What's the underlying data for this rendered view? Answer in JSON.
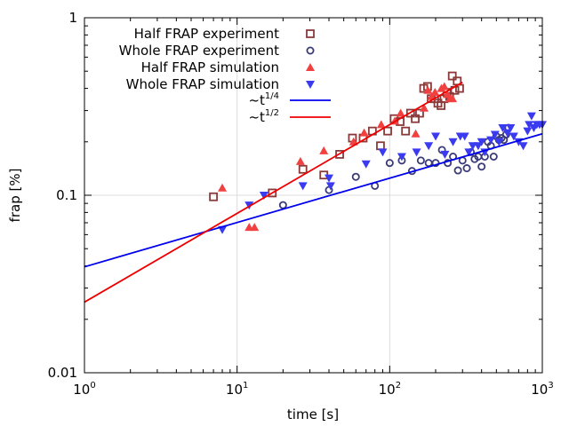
{
  "chart_data": {
    "type": "scatter",
    "xlabel": "time [s]",
    "ylabel": "frap [%]",
    "xscale": "log",
    "yscale": "log",
    "xlim": [
      1,
      1000
    ],
    "ylim": [
      0.01,
      1
    ],
    "grid": "major",
    "legend_position": "top-left",
    "x_ticks": [
      {
        "value": 1,
        "base": "10",
        "exp": "0"
      },
      {
        "value": 10,
        "base": "10",
        "exp": "1"
      },
      {
        "value": 100,
        "base": "10",
        "exp": "2"
      },
      {
        "value": 1000,
        "base": "10",
        "exp": "3"
      }
    ],
    "y_ticks": [
      {
        "value": 0.01,
        "label": "0.01"
      },
      {
        "value": 0.1,
        "label": "0.1"
      },
      {
        "value": 1,
        "label": "1"
      }
    ],
    "series": [
      {
        "name": "Half FRAP experiment",
        "marker": "square-open",
        "color": "#8b3a3a",
        "points": [
          [
            7,
            0.098
          ],
          [
            17,
            0.103
          ],
          [
            27,
            0.14
          ],
          [
            37,
            0.13
          ],
          [
            47,
            0.17
          ],
          [
            57,
            0.21
          ],
          [
            67,
            0.21
          ],
          [
            77,
            0.23
          ],
          [
            87,
            0.19
          ],
          [
            97,
            0.23
          ],
          [
            107,
            0.27
          ],
          [
            117,
            0.26
          ],
          [
            127,
            0.23
          ],
          [
            137,
            0.29
          ],
          [
            147,
            0.27
          ],
          [
            157,
            0.29
          ],
          [
            167,
            0.4
          ],
          [
            177,
            0.41
          ],
          [
            187,
            0.35
          ],
          [
            197,
            0.35
          ],
          [
            207,
            0.33
          ],
          [
            217,
            0.32
          ],
          [
            227,
            0.35
          ],
          [
            237,
            0.38
          ],
          [
            247,
            0.36
          ],
          [
            257,
            0.47
          ],
          [
            267,
            0.39
          ],
          [
            277,
            0.44
          ],
          [
            287,
            0.4
          ]
        ]
      },
      {
        "name": "Whole FRAP experiment",
        "marker": "circle-open",
        "color": "#3b3b7a",
        "points": [
          [
            20,
            0.088
          ],
          [
            40,
            0.107
          ],
          [
            60,
            0.127
          ],
          [
            80,
            0.113
          ],
          [
            100,
            0.152
          ],
          [
            120,
            0.157
          ],
          [
            140,
            0.137
          ],
          [
            160,
            0.157
          ],
          [
            180,
            0.152
          ],
          [
            200,
            0.152
          ],
          [
            220,
            0.18
          ],
          [
            240,
            0.152
          ],
          [
            260,
            0.165
          ],
          [
            280,
            0.138
          ],
          [
            300,
            0.157
          ],
          [
            320,
            0.142
          ],
          [
            340,
            0.175
          ],
          [
            360,
            0.16
          ],
          [
            380,
            0.165
          ],
          [
            400,
            0.145
          ],
          [
            420,
            0.165
          ],
          [
            440,
            0.2
          ],
          [
            460,
            0.19
          ],
          [
            480,
            0.165
          ],
          [
            500,
            0.215
          ],
          [
            520,
            0.205
          ],
          [
            540,
            0.21
          ],
          [
            560,
            0.205
          ],
          [
            580,
            0.22
          ],
          [
            600,
            0.24
          ]
        ]
      },
      {
        "name": "Half FRAP simulation",
        "marker": "triangle-up",
        "color": "#f04040",
        "points": [
          [
            8,
            0.11
          ],
          [
            12,
            0.066
          ],
          [
            13,
            0.066
          ],
          [
            26,
            0.155
          ],
          [
            37,
            0.178
          ],
          [
            58,
            0.2
          ],
          [
            68,
            0.225
          ],
          [
            88,
            0.25
          ],
          [
            108,
            0.262
          ],
          [
            118,
            0.29
          ],
          [
            148,
            0.222
          ],
          [
            168,
            0.31
          ],
          [
            178,
            0.39
          ],
          [
            188,
            0.36
          ],
          [
            198,
            0.38
          ],
          [
            218,
            0.4
          ],
          [
            228,
            0.41
          ],
          [
            238,
            0.37
          ],
          [
            248,
            0.35
          ],
          [
            258,
            0.35
          ]
        ]
      },
      {
        "name": "Whole FRAP simulation",
        "marker": "triangle-down",
        "color": "#3a3af0",
        "points": [
          [
            8,
            0.064
          ],
          [
            12,
            0.088
          ],
          [
            15,
            0.1
          ],
          [
            27,
            0.113
          ],
          [
            40,
            0.125
          ],
          [
            41,
            0.113
          ],
          [
            70,
            0.15
          ],
          [
            90,
            0.175
          ],
          [
            120,
            0.165
          ],
          [
            150,
            0.175
          ],
          [
            180,
            0.19
          ],
          [
            200,
            0.215
          ],
          [
            230,
            0.17
          ],
          [
            260,
            0.2
          ],
          [
            290,
            0.215
          ],
          [
            310,
            0.215
          ],
          [
            330,
            0.175
          ],
          [
            350,
            0.19
          ],
          [
            380,
            0.19
          ],
          [
            400,
            0.2
          ],
          [
            420,
            0.175
          ],
          [
            460,
            0.205
          ],
          [
            490,
            0.22
          ],
          [
            520,
            0.2
          ],
          [
            550,
            0.24
          ],
          [
            590,
            0.225
          ],
          [
            620,
            0.24
          ],
          [
            650,
            0.215
          ],
          [
            700,
            0.2
          ],
          [
            750,
            0.19
          ],
          [
            800,
            0.23
          ],
          [
            820,
            0.25
          ],
          [
            850,
            0.28
          ],
          [
            880,
            0.24
          ],
          [
            920,
            0.25
          ],
          [
            960,
            0.25
          ],
          [
            1000,
            0.25
          ]
        ]
      },
      {
        "name": "~t^1/4",
        "legend_base": "~t",
        "legend_exp": "1/4",
        "type": "line",
        "color": "#0000ee",
        "x": [
          1,
          1000
        ],
        "y": [
          0.0395,
          0.222
        ]
      },
      {
        "name": "~t^1/2",
        "legend_base": "~t",
        "legend_exp": "1/2",
        "type": "line",
        "color": "#ee0000",
        "x": [
          1,
          300
        ],
        "y": [
          0.025,
          0.433
        ]
      }
    ]
  }
}
